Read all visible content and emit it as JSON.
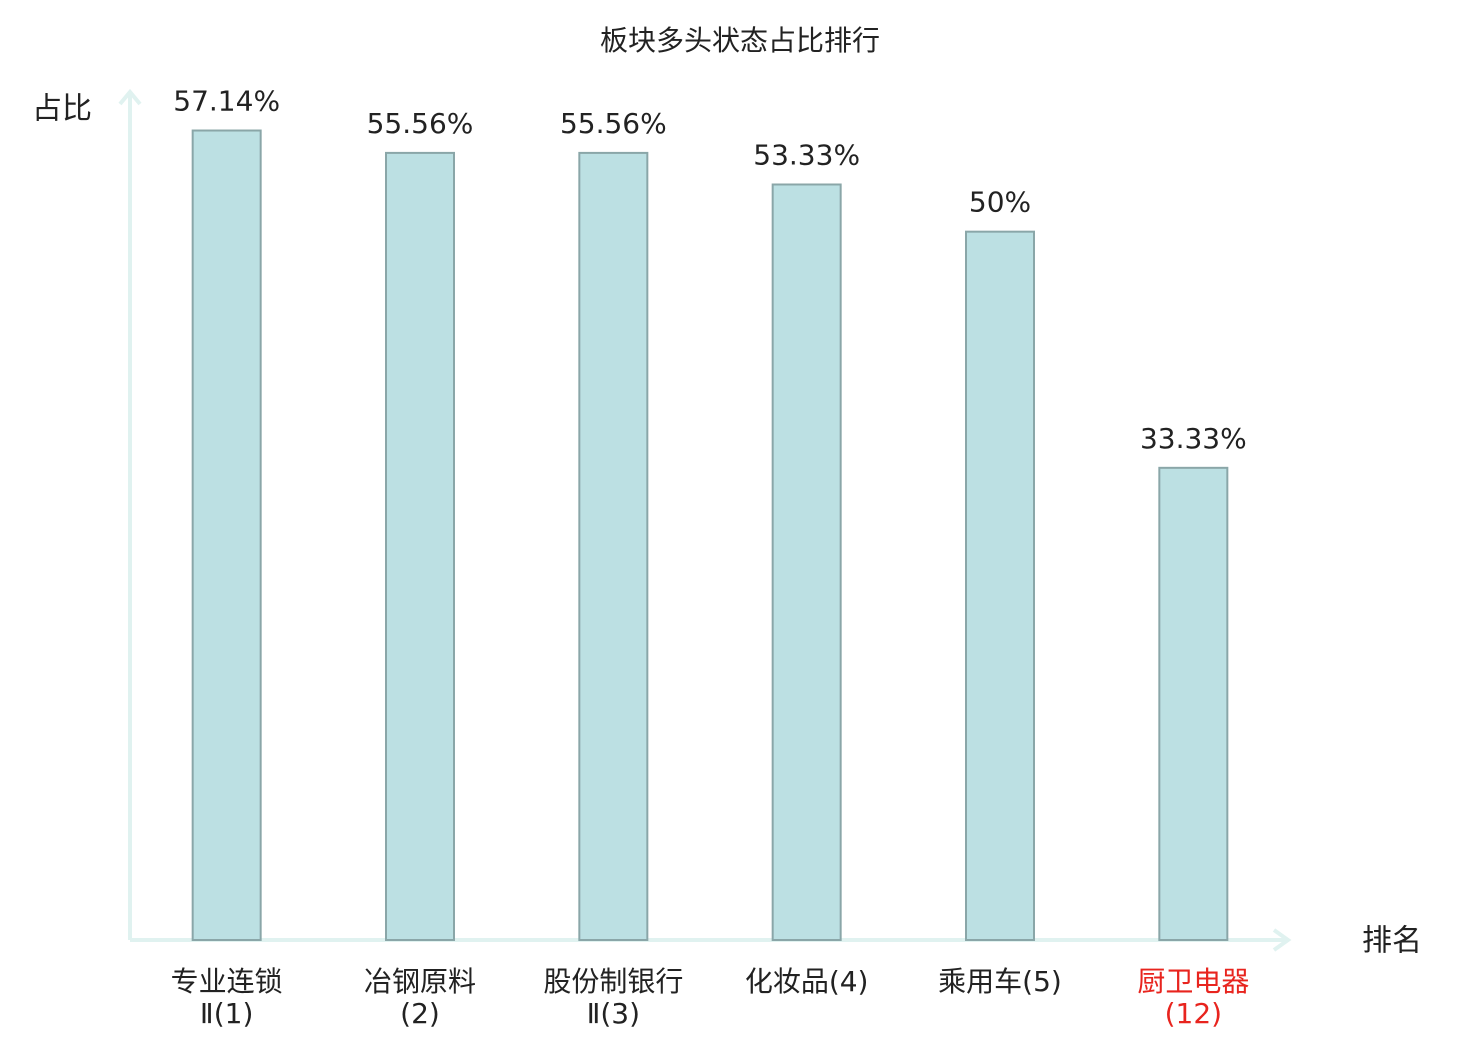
{
  "chart_data": {
    "type": "bar",
    "title": "板块多头状态占比排行",
    "y_label": "占比",
    "x_label": "排名",
    "categories": [
      "专业连锁Ⅱ(1)",
      "冶钢原料(2)",
      "股份制银行Ⅱ(3)",
      "化妆品(4)",
      "乘用车(5)",
      "厨卫电器(12)"
    ],
    "category_colors": [
      "#222222",
      "#222222",
      "#222222",
      "#222222",
      "#222222",
      "#e8241e"
    ],
    "values": [
      57.14,
      55.56,
      55.56,
      53.33,
      50,
      33.33
    ],
    "value_labels": [
      "57.14%",
      "55.56%",
      "55.56%",
      "53.33%",
      "50%",
      "33.33%"
    ],
    "color": "#bce0e3",
    "edge_color": "#8aa6a8",
    "ylim": [
      0,
      60
    ]
  }
}
